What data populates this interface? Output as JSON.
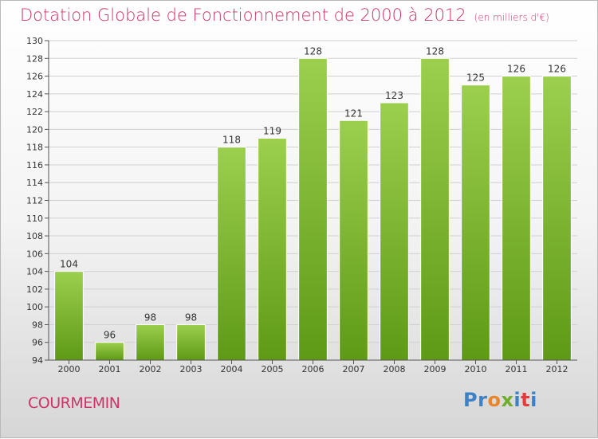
{
  "title": "Dotation Globale de Fonctionnement de 2000 à 2012",
  "subtitle": "(en milliers d'€)",
  "commune": "COURMEMIN",
  "logo": {
    "letters": [
      "P",
      "r",
      "o",
      "x",
      "i",
      "t",
      "i"
    ],
    "colors": [
      "#3d82c5",
      "#3d82c5",
      "#e9852a",
      "#6fae2a",
      "#3d82c5",
      "#e23c3c",
      "#3d82c5"
    ]
  },
  "colors": {
    "title": "#cc3366",
    "bar_light": "#9ccf4e",
    "bar_dark": "#5e9a16",
    "grid": "#d0d0d0"
  },
  "chart_data": {
    "type": "bar",
    "title": "Dotation Globale de Fonctionnement de 2000 à 2012",
    "subtitle": "(en milliers d'€)",
    "categories": [
      "2000",
      "2001",
      "2002",
      "2003",
      "2004",
      "2005",
      "2006",
      "2007",
      "2008",
      "2009",
      "2010",
      "2011",
      "2012"
    ],
    "values": [
      104,
      96,
      98,
      98,
      118,
      119,
      128,
      121,
      123,
      128,
      125,
      126,
      126
    ],
    "ylim": [
      94,
      130
    ],
    "yticks": [
      94,
      96,
      98,
      100,
      102,
      104,
      106,
      108,
      110,
      112,
      114,
      116,
      118,
      120,
      122,
      124,
      126,
      128,
      130
    ],
    "xlabel": "",
    "ylabel": "",
    "grid": true
  }
}
